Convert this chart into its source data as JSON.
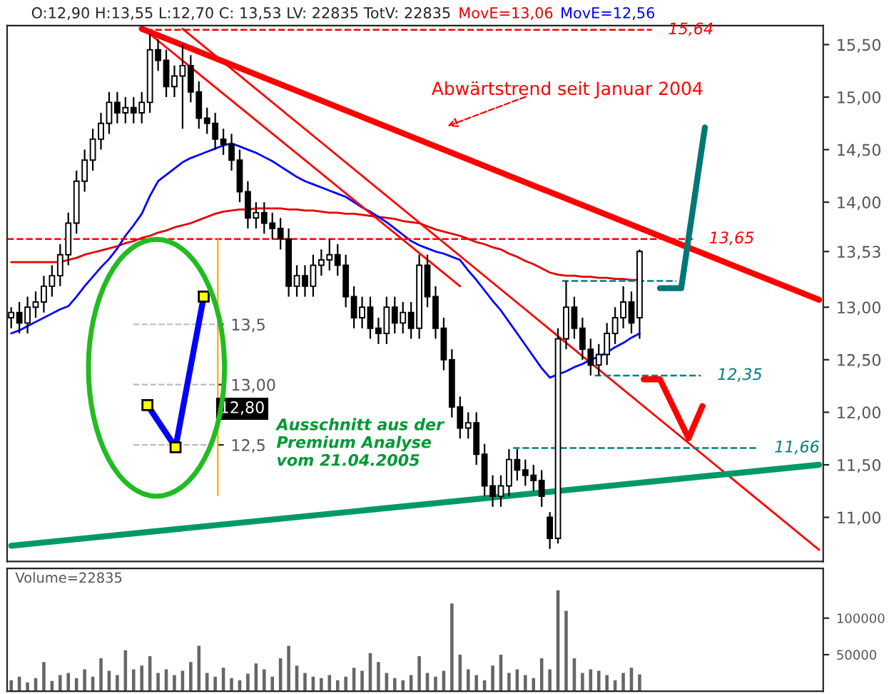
{
  "chart_data": [
    {
      "type": "candlestick",
      "title": "O:12,90 H:13,55 L:12,70 C: 13,53 LV: 22835 TotV: 22835",
      "categories": [
        null,
        null,
        null,
        null,
        null,
        null,
        null,
        null,
        null,
        null,
        null,
        null,
        null,
        null,
        null,
        null,
        null,
        null,
        null,
        null,
        null,
        null,
        null,
        null,
        null,
        null,
        null,
        null,
        null,
        null,
        null,
        null,
        null,
        null,
        null,
        null,
        null,
        null,
        null,
        null,
        null,
        null,
        null,
        null,
        null,
        null,
        null,
        null,
        null,
        null,
        null,
        null,
        null,
        null,
        null,
        null,
        null,
        null,
        null,
        null,
        null,
        null,
        null,
        null,
        null,
        null,
        null,
        null,
        null,
        null,
        null,
        null,
        null,
        null,
        null,
        null,
        null,
        null,
        null,
        null,
        null,
        null,
        null,
        null,
        null,
        null,
        null,
        null,
        null,
        null,
        null,
        null,
        null,
        null,
        null,
        null,
        null,
        null,
        null,
        null
      ],
      "ohlc": [
        [
          12.9,
          13.0,
          12.8,
          12.95
        ],
        [
          12.95,
          13.05,
          12.75,
          12.85
        ],
        [
          12.85,
          13.1,
          12.75,
          13.0
        ],
        [
          13.0,
          13.15,
          12.9,
          13.05
        ],
        [
          13.05,
          13.3,
          12.95,
          13.2
        ],
        [
          13.2,
          13.4,
          13.1,
          13.3
        ],
        [
          13.3,
          13.6,
          13.2,
          13.5
        ],
        [
          13.5,
          13.9,
          13.4,
          13.8
        ],
        [
          13.8,
          14.3,
          13.7,
          14.2
        ],
        [
          14.2,
          14.5,
          14.1,
          14.4
        ],
        [
          14.4,
          14.7,
          14.3,
          14.6
        ],
        [
          14.6,
          14.85,
          14.5,
          14.75
        ],
        [
          14.75,
          15.05,
          14.65,
          14.95
        ],
        [
          14.95,
          15.05,
          14.75,
          14.85
        ],
        [
          14.85,
          15.0,
          14.75,
          14.9
        ],
        [
          14.9,
          15.0,
          14.75,
          14.85
        ],
        [
          14.85,
          15.05,
          14.75,
          14.95
        ],
        [
          14.95,
          15.6,
          14.85,
          15.45
        ],
        [
          15.45,
          15.55,
          15.25,
          15.35
        ],
        [
          15.35,
          15.45,
          15.0,
          15.1
        ],
        [
          15.1,
          15.3,
          15.0,
          15.2
        ],
        [
          15.2,
          15.5,
          14.7,
          15.3
        ],
        [
          15.3,
          15.4,
          14.95,
          15.05
        ],
        [
          15.05,
          15.15,
          14.7,
          14.8
        ],
        [
          14.8,
          14.9,
          14.65,
          14.75
        ],
        [
          14.75,
          14.85,
          14.5,
          14.6
        ],
        [
          14.6,
          14.7,
          14.45,
          14.55
        ],
        [
          14.55,
          14.65,
          14.3,
          14.4
        ],
        [
          14.4,
          14.5,
          14.0,
          14.1
        ],
        [
          14.1,
          14.2,
          13.75,
          13.85
        ],
        [
          13.85,
          14.0,
          13.75,
          13.9
        ],
        [
          13.9,
          14.0,
          13.7,
          13.8
        ],
        [
          13.8,
          13.9,
          13.65,
          13.75
        ],
        [
          13.75,
          13.85,
          13.55,
          13.65
        ],
        [
          13.65,
          13.75,
          13.1,
          13.2
        ],
        [
          13.2,
          13.4,
          13.1,
          13.3
        ],
        [
          13.3,
          13.4,
          13.1,
          13.2
        ],
        [
          13.2,
          13.5,
          13.1,
          13.4
        ],
        [
          13.4,
          13.55,
          13.3,
          13.45
        ],
        [
          13.45,
          13.65,
          13.35,
          13.5
        ],
        [
          13.5,
          13.6,
          13.3,
          13.4
        ],
        [
          13.4,
          13.5,
          13.0,
          13.1
        ],
        [
          13.1,
          13.2,
          12.8,
          12.9
        ],
        [
          12.9,
          13.1,
          12.8,
          13.0
        ],
        [
          13.0,
          13.1,
          12.7,
          12.8
        ],
        [
          12.8,
          12.9,
          12.65,
          12.75
        ],
        [
          12.75,
          13.1,
          12.65,
          13.0
        ],
        [
          13.0,
          13.1,
          12.75,
          12.85
        ],
        [
          12.85,
          13.05,
          12.75,
          12.95
        ],
        [
          12.95,
          13.05,
          12.7,
          12.8
        ],
        [
          12.8,
          13.5,
          12.7,
          13.4
        ],
        [
          13.4,
          13.5,
          13.0,
          13.1
        ],
        [
          13.1,
          13.2,
          12.7,
          12.8
        ],
        [
          12.8,
          12.9,
          12.4,
          12.5
        ],
        [
          12.5,
          12.6,
          11.95,
          12.05
        ],
        [
          12.05,
          12.15,
          11.75,
          11.85
        ],
        [
          11.85,
          12.0,
          11.75,
          11.9
        ],
        [
          11.9,
          12.0,
          11.5,
          11.6
        ],
        [
          11.6,
          11.7,
          11.2,
          11.3
        ],
        [
          11.3,
          11.4,
          11.1,
          11.2
        ],
        [
          11.2,
          11.4,
          11.1,
          11.3
        ],
        [
          11.3,
          11.65,
          11.2,
          11.55
        ],
        [
          11.55,
          11.65,
          11.35,
          11.45
        ],
        [
          11.45,
          11.55,
          11.3,
          11.4
        ],
        [
          11.4,
          11.5,
          11.25,
          11.35
        ],
        [
          11.35,
          11.45,
          11.1,
          11.2
        ],
        [
          11.0,
          11.05,
          10.7,
          10.8
        ],
        [
          10.8,
          12.8,
          10.75,
          12.7
        ],
        [
          12.7,
          13.25,
          12.6,
          13.0
        ],
        [
          13.0,
          13.1,
          12.7,
          12.8
        ],
        [
          12.8,
          12.9,
          12.5,
          12.6
        ],
        [
          12.6,
          12.7,
          12.35,
          12.45
        ],
        [
          12.45,
          12.65,
          12.35,
          12.55
        ],
        [
          12.55,
          12.85,
          12.45,
          12.75
        ],
        [
          12.75,
          13.0,
          12.65,
          12.9
        ],
        [
          12.9,
          13.2,
          12.8,
          13.05
        ],
        [
          13.05,
          13.15,
          12.75,
          12.85
        ],
        [
          12.9,
          13.55,
          12.7,
          13.53
        ],
        null,
        null,
        null,
        null,
        null,
        null,
        null,
        null,
        null,
        null,
        null,
        null,
        null,
        null,
        null,
        null,
        null,
        null,
        null,
        null,
        null,
        null
      ],
      "series": [
        {
          "name": "MovE=13,06",
          "type": "line",
          "color": "#e60000",
          "values": [
            13.43,
            13.43,
            13.43,
            13.43,
            13.43,
            13.43,
            13.43,
            13.45,
            13.47,
            13.5,
            13.52,
            13.54,
            13.56,
            13.58,
            13.61,
            13.63,
            13.66,
            13.68,
            13.71,
            13.73,
            13.76,
            13.78,
            13.8,
            13.83,
            13.86,
            13.89,
            13.91,
            13.92,
            13.93,
            13.93,
            13.94,
            13.94,
            13.94,
            13.94,
            13.93,
            13.93,
            13.92,
            13.92,
            13.91,
            13.9,
            13.9,
            13.89,
            13.89,
            13.88,
            13.87,
            13.86,
            13.85,
            13.84,
            13.82,
            13.81,
            13.8,
            13.77,
            13.74,
            13.72,
            13.7,
            13.68,
            13.65,
            13.62,
            13.6,
            13.57,
            13.55,
            13.51,
            13.48,
            13.44,
            13.41,
            13.37,
            13.33,
            13.31,
            13.3,
            13.3,
            13.29,
            13.29,
            13.28,
            13.28,
            13.27,
            13.27,
            13.26,
            13.26,
            null,
            null,
            null,
            null,
            null,
            null,
            null,
            null,
            null,
            null,
            null,
            null,
            null,
            null,
            null,
            null,
            null,
            null,
            null,
            null,
            null,
            null
          ]
        },
        {
          "name": "MovE=12,56",
          "type": "line",
          "color": "#0000ff",
          "values": [
            12.75,
            12.78,
            12.82,
            12.86,
            12.9,
            12.94,
            12.98,
            13.01,
            13.1,
            13.2,
            13.29,
            13.38,
            13.46,
            13.56,
            13.68,
            13.78,
            13.89,
            14.06,
            14.2,
            14.26,
            14.32,
            14.38,
            14.42,
            14.45,
            14.48,
            14.51,
            14.54,
            14.56,
            14.53,
            14.5,
            14.47,
            14.43,
            14.39,
            14.34,
            14.29,
            14.24,
            14.2,
            14.17,
            14.14,
            14.11,
            14.08,
            14.05,
            14.0,
            13.95,
            13.91,
            13.86,
            13.81,
            13.75,
            13.69,
            13.63,
            13.59,
            13.56,
            13.53,
            13.51,
            13.48,
            13.45,
            13.35,
            13.26,
            13.16,
            13.06,
            12.97,
            12.86,
            12.75,
            12.64,
            12.53,
            12.42,
            12.33,
            12.36,
            12.39,
            12.43,
            12.46,
            12.5,
            12.53,
            12.57,
            12.62,
            12.66,
            12.71,
            12.75,
            null,
            null,
            null,
            null,
            null,
            null,
            null,
            null,
            null,
            null,
            null,
            null,
            null,
            null,
            null,
            null,
            null,
            null,
            null,
            null,
            null,
            null
          ]
        },
        {
          "type": "line",
          "color": "#ff0000",
          "values": [
            null,
            null,
            null,
            null,
            null,
            null,
            null,
            null,
            null,
            null,
            null,
            null,
            null,
            null,
            null,
            null,
            15.65,
            null,
            null,
            null,
            null,
            null,
            null,
            null,
            null,
            null,
            null,
            null,
            null,
            null,
            null,
            null,
            null,
            null,
            null,
            null,
            null,
            null,
            null,
            null,
            null,
            null,
            null,
            null,
            null,
            null,
            null,
            null,
            null,
            null,
            null,
            null,
            null,
            null,
            null,
            null,
            null,
            null,
            null,
            null,
            null,
            null,
            null,
            null,
            null,
            null,
            null,
            null,
            null,
            null,
            null,
            null,
            null,
            null,
            null,
            null,
            null,
            null,
            null,
            null,
            null,
            null,
            null,
            null,
            null,
            null,
            null,
            null,
            null,
            null,
            null,
            null,
            null,
            null,
            null,
            null,
            null,
            null,
            null,
            13.07
          ]
        },
        {
          "type": "line",
          "color": "#ff0000",
          "values": [
            null,
            null,
            null,
            null,
            null,
            null,
            null,
            null,
            null,
            null,
            null,
            null,
            null,
            null,
            null,
            null,
            null,
            null,
            null,
            null,
            null,
            15.65,
            null,
            null,
            null,
            null,
            null,
            null,
            null,
            null,
            null,
            null,
            null,
            null,
            null,
            null,
            null,
            null,
            null,
            null,
            null,
            null,
            null,
            null,
            null,
            null,
            null,
            null,
            null,
            null,
            null,
            null,
            null,
            null,
            null,
            null,
            null,
            null,
            null,
            null,
            null,
            null,
            null,
            null,
            null,
            null,
            null,
            null,
            null,
            null,
            null,
            null,
            null,
            null,
            null,
            null,
            null,
            null,
            null,
            null,
            null,
            null,
            null,
            null,
            null,
            null,
            null,
            null,
            null,
            null,
            null,
            null,
            null,
            null,
            null,
            null,
            null,
            null,
            null,
            10.69
          ]
        },
        {
          "type": "line",
          "color": "#ff0000",
          "values": [
            null,
            null,
            null,
            null,
            null,
            null,
            null,
            null,
            null,
            null,
            null,
            null,
            null,
            null,
            null,
            null,
            null,
            15.6,
            null,
            null,
            null,
            null,
            null,
            null,
            null,
            null,
            null,
            null,
            null,
            null,
            null,
            null,
            null,
            null,
            null,
            null,
            null,
            null,
            null,
            null,
            null,
            null,
            null,
            null,
            null,
            null,
            null,
            null,
            null,
            null,
            null,
            null,
            null,
            null,
            null,
            13.2,
            null,
            null,
            null,
            null,
            null,
            null,
            null,
            null,
            null,
            null,
            null,
            null,
            null,
            null,
            null,
            null,
            null,
            null,
            null,
            null,
            null,
            null,
            null,
            null,
            null,
            null,
            null,
            null,
            null,
            null,
            null,
            null,
            null,
            null,
            null,
            null,
            null,
            null,
            null,
            null,
            null,
            null,
            null,
            null
          ]
        },
        {
          "type": "line",
          "color": "#009966",
          "values": [
            10.73,
            null,
            null,
            null,
            null,
            null,
            null,
            null,
            null,
            null,
            null,
            null,
            null,
            null,
            null,
            null,
            null,
            null,
            null,
            null,
            null,
            null,
            null,
            null,
            null,
            null,
            null,
            null,
            null,
            null,
            null,
            null,
            null,
            null,
            null,
            null,
            null,
            null,
            null,
            null,
            null,
            null,
            null,
            null,
            null,
            null,
            null,
            null,
            null,
            null,
            null,
            null,
            null,
            null,
            null,
            null,
            null,
            null,
            null,
            null,
            null,
            null,
            null,
            null,
            null,
            null,
            null,
            null,
            null,
            null,
            null,
            null,
            null,
            null,
            null,
            null,
            null,
            null,
            null,
            null,
            null,
            null,
            null,
            null,
            null,
            null,
            null,
            null,
            null,
            null,
            null,
            null,
            null,
            null,
            null,
            null,
            null,
            null,
            null,
            11.5
          ]
        }
      ],
      "ylim": [
        10.58,
        15.68
      ],
      "yticks": [
        {
          "value": 11.0,
          "label": "11,00"
        },
        {
          "value": 11.5,
          "label": "11,50"
        },
        {
          "value": 12.0,
          "label": "12,00"
        },
        {
          "value": 12.5,
          "label": "12,50"
        },
        {
          "value": 13.0,
          "label": "13,00"
        },
        {
          "value": 13.53,
          "label": "13,53"
        },
        {
          "value": 14.0,
          "label": "14,00"
        },
        {
          "value": 14.5,
          "label": "14,50"
        },
        {
          "value": 15.0,
          "label": "15,00"
        },
        {
          "value": 15.5,
          "label": "15,50"
        }
      ],
      "ref_lines": [
        {
          "axis": "y",
          "value": 15.64,
          "label": "15,64",
          "color": "#ff0000",
          "line_style": "dashed"
        },
        {
          "axis": "y",
          "value": 13.65,
          "label": "13,65",
          "color": "#ff0000",
          "line_style": "dashed"
        },
        {
          "axis": "y",
          "value": 13.25,
          "label": null,
          "color": "#008080",
          "line_style": "dashed"
        },
        {
          "axis": "y",
          "value": 12.35,
          "label": "12,35",
          "color": "#008080",
          "line_style": "dashed"
        },
        {
          "axis": "y",
          "value": 11.66,
          "label": "11,66",
          "color": "#008080",
          "line_style": "dashed"
        }
      ],
      "annotations": [
        "Abwärtstrend seit Januar 2004",
        "Ausschnitt aus der\nPremium Analyse\nvom 21.04.2005"
      ],
      "legend": "top",
      "tick_labels": "y",
      "grid": false
    },
    {
      "type": "line",
      "categories": [
        null,
        null,
        null
      ],
      "series": [
        {
          "color": "#0000ff",
          "values": [
            12.83,
            12.48,
            13.73
          ]
        }
      ],
      "ylim": [
        12.08,
        14.21
      ],
      "yticks": [
        {
          "value": 12.5,
          "label": "12,5"
        },
        {
          "value": 13.0,
          "label": "13,00"
        },
        {
          "value": 13.5,
          "label": "13,5"
        }
      ],
      "annotations": [
        {
          "text": "12,80",
          "y": 12.8
        }
      ],
      "marker": "square",
      "grid": "y",
      "tick_labels": "y"
    },
    {
      "type": "bar",
      "title": "Volume=22835",
      "categories": [
        null,
        null,
        null,
        null,
        null,
        null,
        null,
        null,
        null,
        null,
        null,
        null,
        null,
        null,
        null,
        null,
        null,
        null,
        null,
        null,
        null,
        null,
        null,
        null,
        null,
        null,
        null,
        null,
        null,
        null,
        null,
        null,
        null,
        null,
        null,
        null,
        null,
        null,
        null,
        null,
        null,
        null,
        null,
        null,
        null,
        null,
        null,
        null,
        null,
        null,
        null,
        null,
        null,
        null,
        null,
        null,
        null,
        null,
        null,
        null,
        null,
        null,
        null,
        null,
        null,
        null,
        null,
        null,
        null,
        null,
        null,
        null,
        null,
        null,
        null,
        null,
        null,
        null,
        null,
        null,
        null,
        null,
        null,
        null,
        null,
        null,
        null,
        null,
        null,
        null,
        null,
        null,
        null,
        null,
        null,
        null,
        null,
        null,
        null,
        null
      ],
      "values": [
        15000,
        20000,
        12000,
        18000,
        40000,
        14000,
        22000,
        25000,
        18000,
        30000,
        20000,
        45000,
        28000,
        22000,
        56000,
        30000,
        35000,
        48000,
        25000,
        30000,
        22000,
        28000,
        40000,
        62000,
        25000,
        20000,
        32000,
        18000,
        15000,
        24000,
        38000,
        30000,
        20000,
        45000,
        62000,
        35000,
        25000,
        20000,
        18000,
        22000,
        15000,
        20000,
        32000,
        28000,
        52000,
        40000,
        25000,
        18000,
        15000,
        22000,
        48000,
        25000,
        20000,
        28000,
        120000,
        50000,
        30000,
        22000,
        15000,
        35000,
        50000,
        25000,
        30000,
        22000,
        18000,
        45000,
        30000,
        138000,
        110000,
        45000,
        25000,
        30000,
        28000,
        22000,
        15000,
        25000,
        32000,
        23000,
        null,
        null,
        null,
        null,
        null,
        null,
        null,
        null,
        null,
        null,
        null,
        null,
        null,
        null,
        null,
        null,
        null,
        null,
        null,
        null,
        null,
        null
      ],
      "color": "#666666",
      "ylim": [
        0,
        168000
      ],
      "yticks": [
        50000,
        100000
      ],
      "tick_labels": "y",
      "grid": false
    }
  ]
}
